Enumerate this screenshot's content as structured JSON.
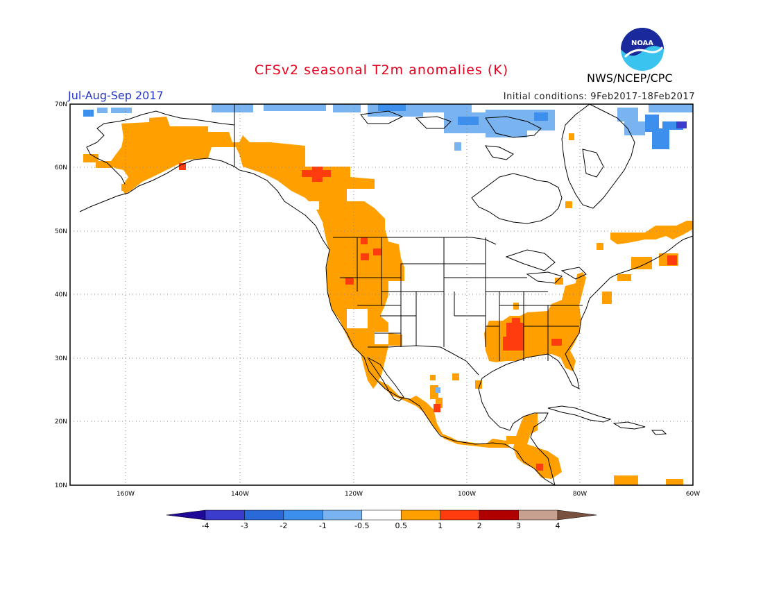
{
  "header": {
    "title": "CFSv2 seasonal T2m anomalies (K)",
    "season": "Jul-Aug-Sep 2017",
    "initial_conditions": "Initial conditions: 9Feb2017-18Feb2017",
    "agency": "NWS/NCEP/CPC",
    "logo_text": "NOAA"
  },
  "map": {
    "lat_labels": [
      "70N",
      "60N",
      "50N",
      "40N",
      "30N",
      "20N",
      "10N"
    ],
    "lon_labels": [
      "160W",
      "140W",
      "120W",
      "100W",
      "80W",
      "60W"
    ],
    "lat_range": [
      10,
      70
    ],
    "lon_range": [
      -172,
      -60
    ],
    "grid": true
  },
  "colorbar": {
    "labels": [
      "-4",
      "-3",
      "-2",
      "-1",
      "-0.5",
      "0.5",
      "1",
      "2",
      "3",
      "4"
    ],
    "colors": [
      "#1e0a96",
      "#3c3ccc",
      "#2a6ad8",
      "#3d8fee",
      "#7ab4f0",
      "#ffffff",
      "#ffa000",
      "#ff3c0e",
      "#b00000",
      "#c8a090",
      "#7a5040"
    ]
  }
}
